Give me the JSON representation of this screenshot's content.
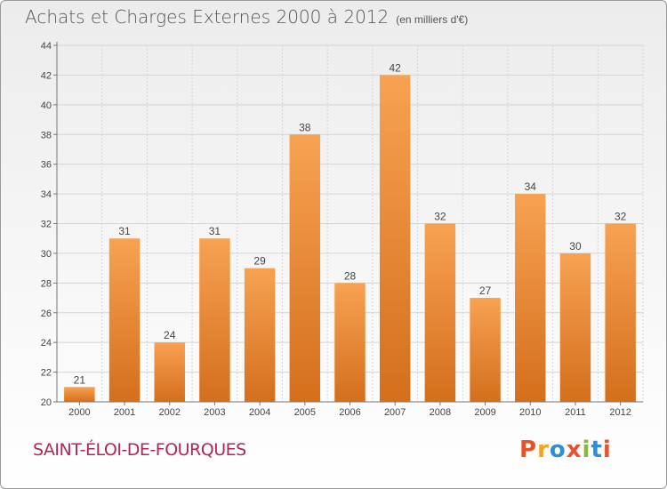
{
  "header": {
    "title": "Achats et Charges Externes 2000 à 2012",
    "unit": "(en milliers d'€)"
  },
  "footer": {
    "city": "SAINT-ÉLOI-DE-FOURQUES",
    "brand": "Proxiti"
  },
  "colors": {
    "bar_light": "#f7a252",
    "bar_dark": "#d46f1c",
    "city": "#b3255a",
    "brand_letters": [
      "#e8542a",
      "#f3a41c",
      "#2e8fd6",
      "#e8542a",
      "#88b83a",
      "#2e8fd6",
      "#e8542a"
    ]
  },
  "chart_data": {
    "type": "bar",
    "title": "Achats et Charges Externes 2000 à 2012",
    "subtitle": "(en milliers d'€)",
    "categories": [
      "2000",
      "2001",
      "2002",
      "2003",
      "2004",
      "2005",
      "2006",
      "2007",
      "2008",
      "2009",
      "2010",
      "2011",
      "2012"
    ],
    "values": [
      21,
      31,
      24,
      31,
      29,
      38,
      28,
      42,
      32,
      27,
      34,
      30,
      32
    ],
    "ylim": [
      20,
      44
    ],
    "yticks": [
      20,
      22,
      24,
      26,
      28,
      30,
      32,
      34,
      36,
      38,
      40,
      42,
      44
    ],
    "grid": true,
    "data_labels": true
  }
}
